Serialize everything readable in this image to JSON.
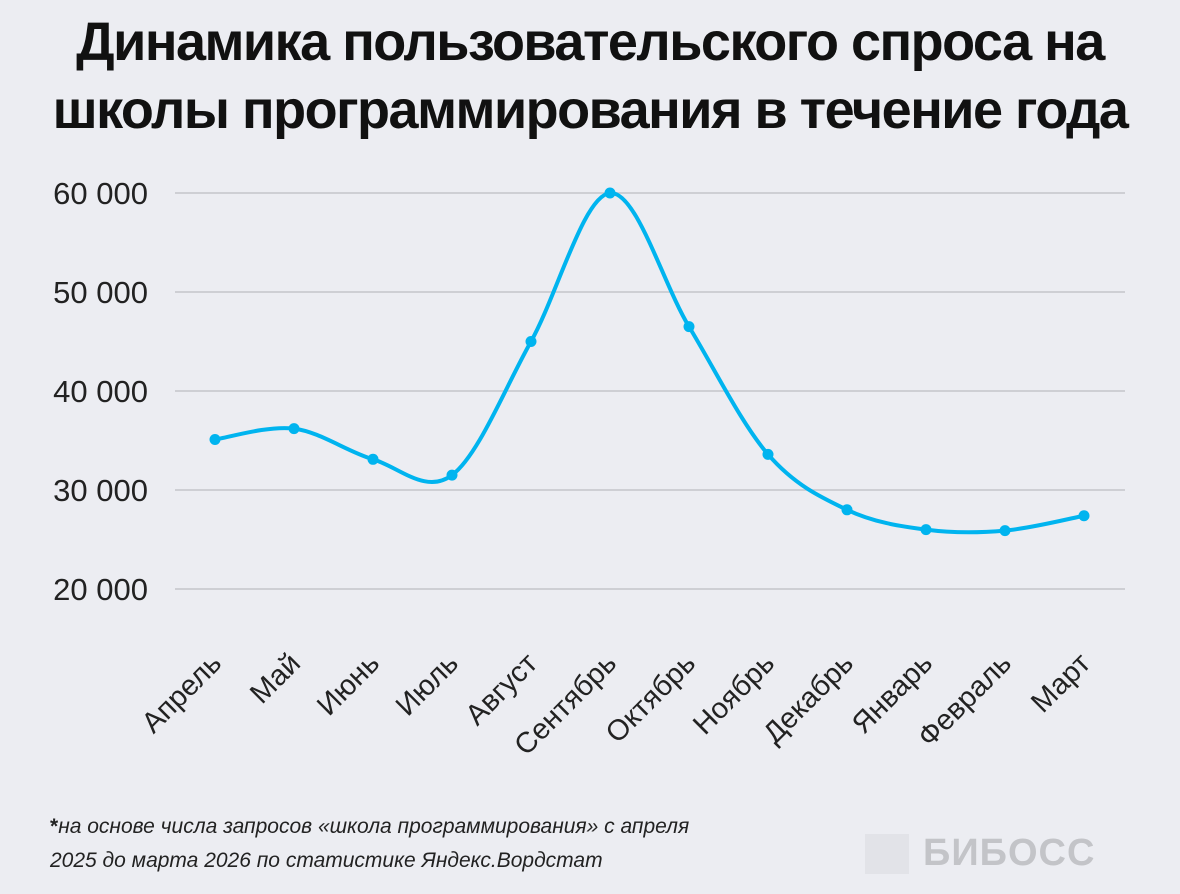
{
  "chart_data": {
    "type": "line",
    "title": "Динамика пользовательского спроса на школы программирования в течение года",
    "categories": [
      "Апрель",
      "Май",
      "Июнь",
      "Июль",
      "Август",
      "Сентябрь",
      "Октябрь",
      "Ноябрь",
      "Декабрь",
      "Январь",
      "Февраль",
      "Март"
    ],
    "values": [
      35100,
      36200,
      33100,
      31500,
      45000,
      60000,
      46500,
      33600,
      28000,
      26000,
      25900,
      27400
    ],
    "xlabel": "",
    "ylabel": "",
    "ylim": [
      20000,
      60000
    ],
    "yticks": [
      20000,
      30000,
      40000,
      50000,
      60000
    ],
    "ytick_labels": [
      "20 000",
      "30 000",
      "40 000",
      "50 000",
      "60 000"
    ],
    "grid": "horizontal",
    "smooth": true,
    "line_color": "#00b4ef",
    "gridline_color": "#c4c5ca"
  },
  "footnote": {
    "marker": "*",
    "line1": "на основе числа запросов «школа программирования» с апреля",
    "line2": "2025 до марта 2026 по статистике Яндекс.Вордстат"
  },
  "logo": {
    "text": "БИБОСС"
  }
}
